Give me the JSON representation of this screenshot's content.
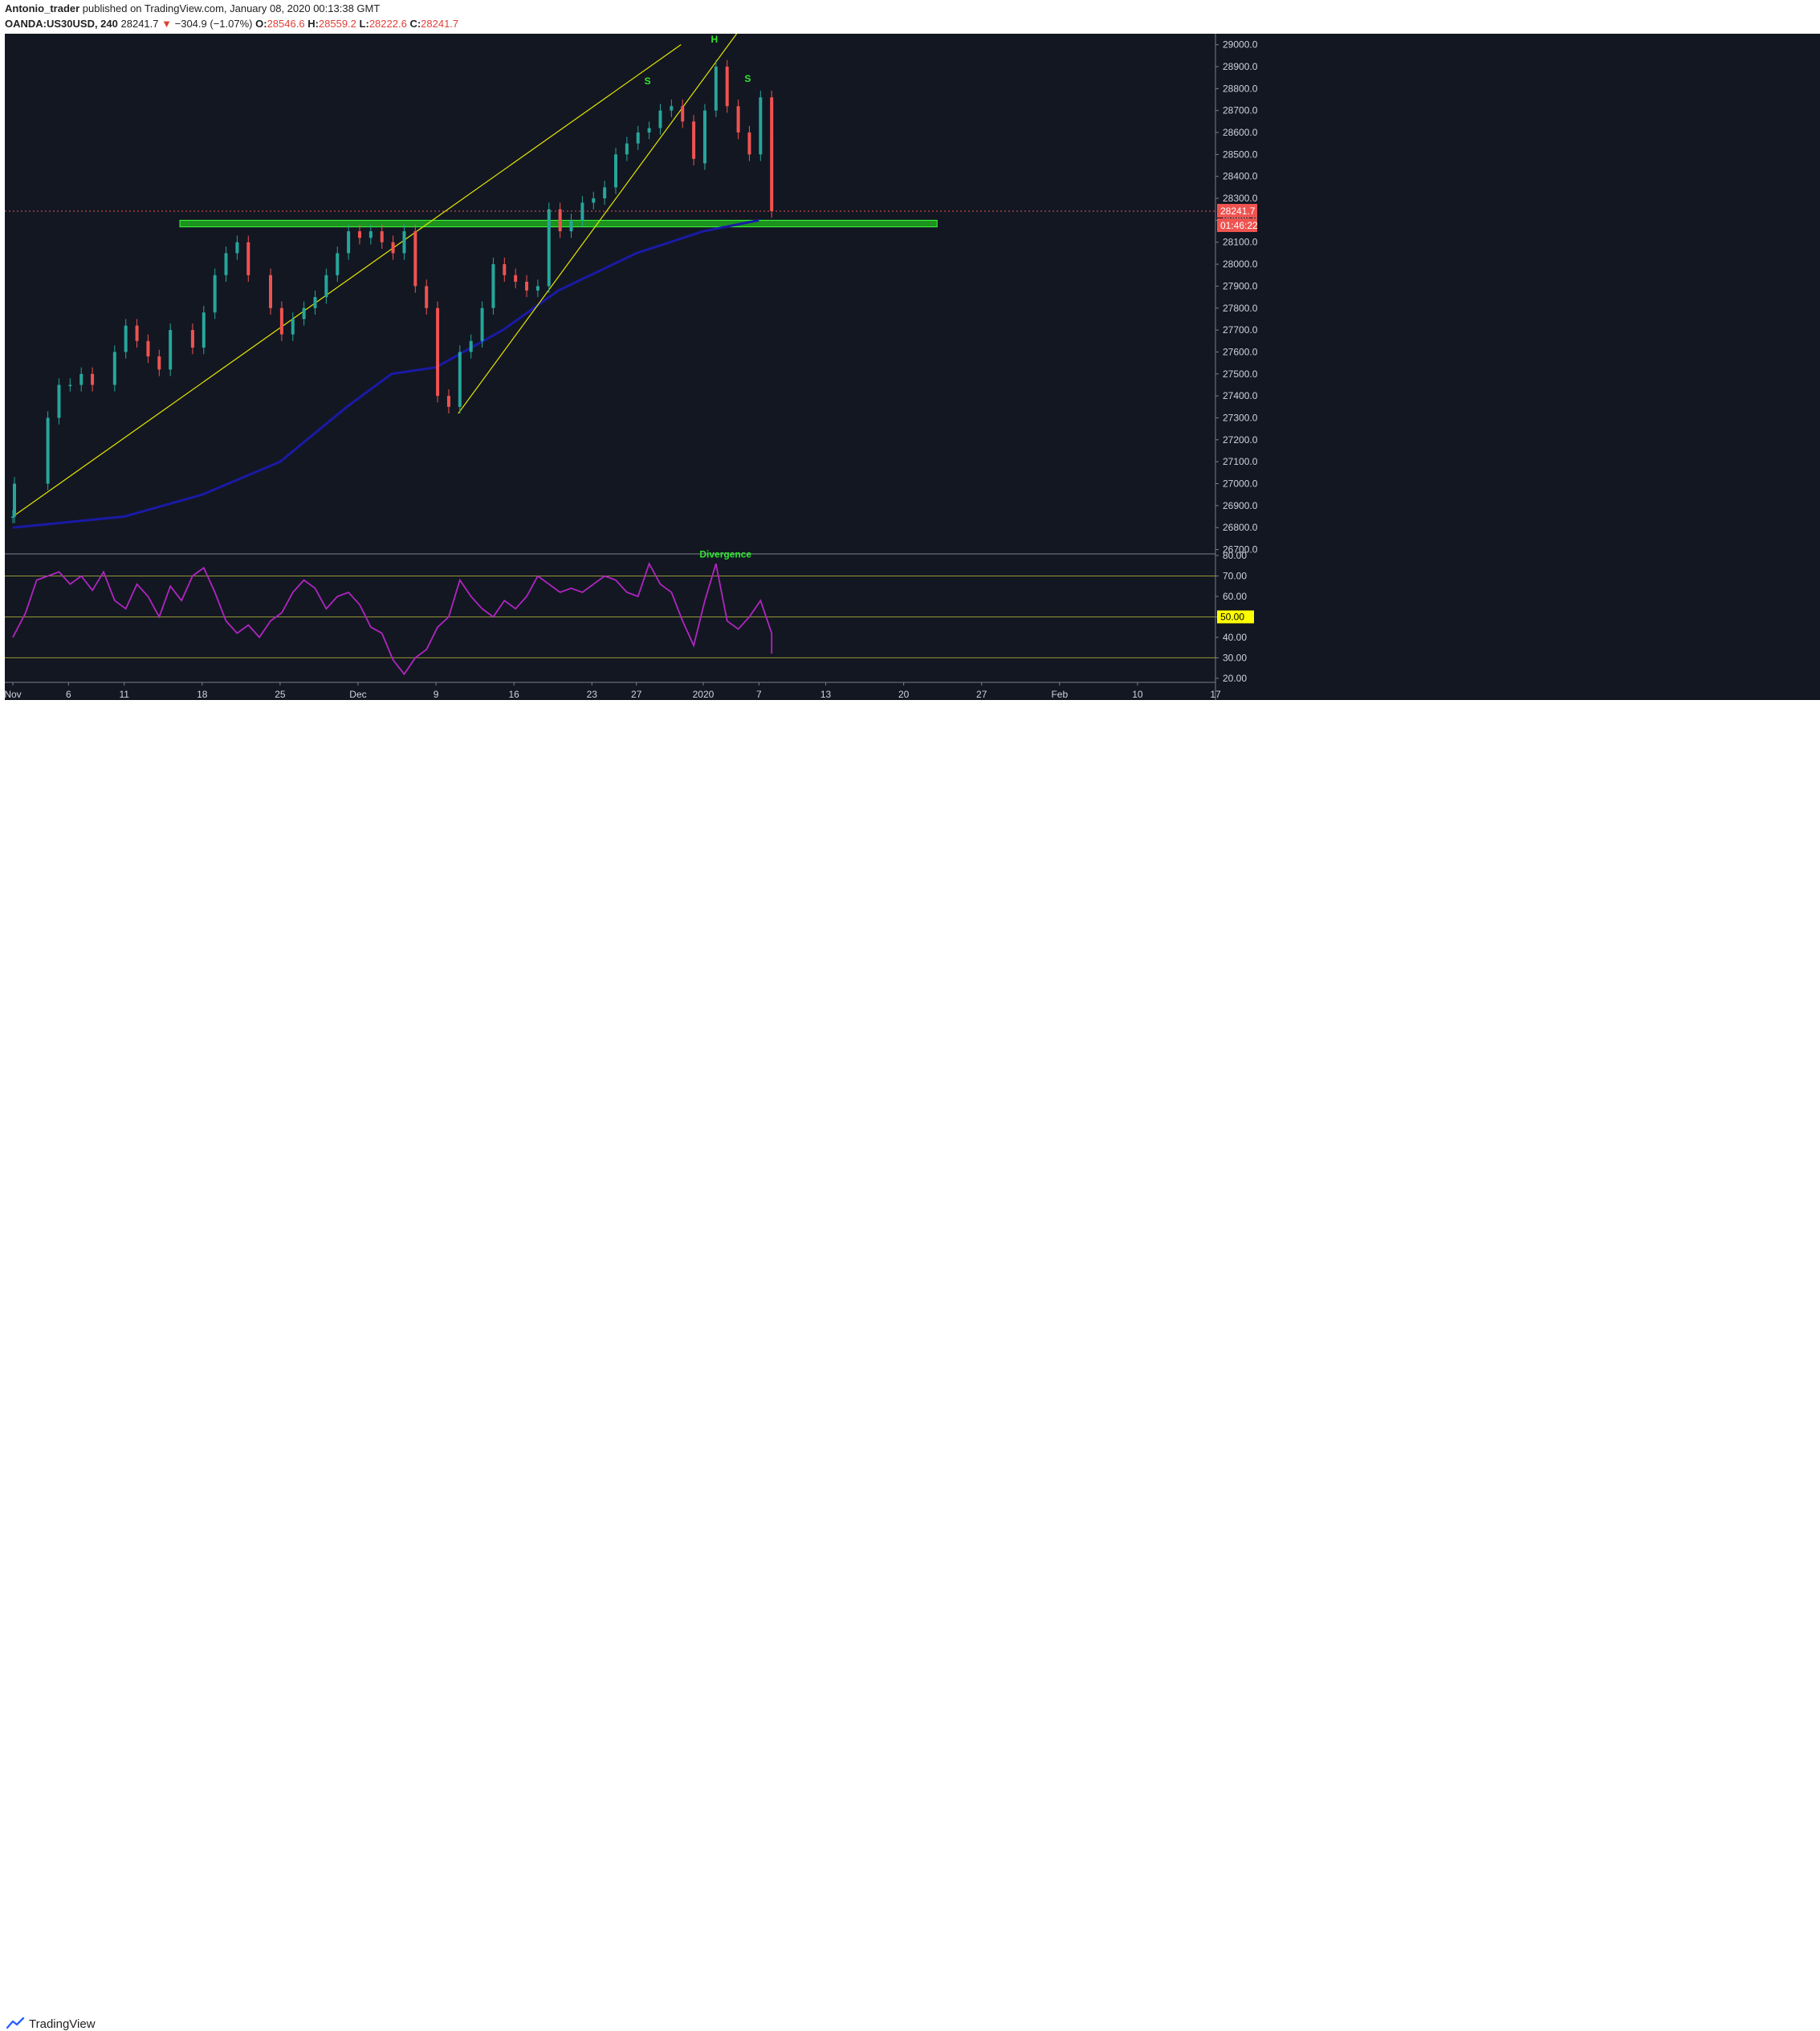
{
  "header": {
    "author": "Antonio_trader",
    "published_text": "published on TradingView.com, January 08, 2020 00:13:38 GMT",
    "symbol": "OANDA:US30USD, 240",
    "last": "28241.7",
    "change": "−304.9 (−1.07%)",
    "o_label": "O:",
    "o": "28546.6",
    "h_label": "H:",
    "h": "28559.2",
    "l_label": "L:",
    "l": "28222.6",
    "c_label": "C:",
    "c": "28241.7"
  },
  "footer": {
    "brand": "TradingView"
  },
  "colors": {
    "background": "#131722",
    "up": "#26a69a",
    "down": "#ef5350",
    "ma": "#1a1aa6",
    "trendline": "#e6e600",
    "zone": "#1fa81f",
    "rsi": "#b025c0",
    "annotation": "#2ee82e"
  },
  "chart_data": [
    {
      "type": "candlestick",
      "title": "",
      "y_ticks": [
        "29000.0",
        "28900.0",
        "28800.0",
        "28700.0",
        "28600.0",
        "28500.0",
        "28400.0",
        "28300.0",
        "28200.0",
        "28100.0",
        "28000.0",
        "27900.0",
        "27800.0",
        "27700.0",
        "27600.0",
        "27500.0",
        "27400.0",
        "27300.0",
        "27200.0",
        "27100.0",
        "27000.0",
        "26900.0",
        "26800.0",
        "26700.0"
      ],
      "ylim": [
        26680,
        29050
      ],
      "x_ticks": [
        "Nov",
        "6",
        "11",
        "18",
        "25",
        "Dec",
        "9",
        "16",
        "23",
        "27",
        "2020",
        "7",
        "13",
        "20",
        "27",
        "Feb",
        "10",
        "17"
      ],
      "x_tick_dates": [
        "2019-11-01",
        "2019-11-06",
        "2019-11-11",
        "2019-11-18",
        "2019-11-25",
        "2019-12-02",
        "2019-12-09",
        "2019-12-16",
        "2019-12-23",
        "2019-12-27",
        "2020-01-02",
        "2020-01-07",
        "2020-01-13",
        "2020-01-20",
        "2020-01-27",
        "2020-02-03",
        "2020-02-10",
        "2020-02-17"
      ],
      "close_path": [
        [
          "2019-11-01",
          26850
        ],
        [
          "2019-11-01",
          27000
        ],
        [
          "2019-11-04",
          27300
        ],
        [
          "2019-11-05",
          27450
        ],
        [
          "2019-11-06",
          27450
        ],
        [
          "2019-11-07",
          27500
        ],
        [
          "2019-11-08",
          27450
        ],
        [
          "2019-11-10",
          27600
        ],
        [
          "2019-11-11",
          27720
        ],
        [
          "2019-11-12",
          27650
        ],
        [
          "2019-11-13",
          27580
        ],
        [
          "2019-11-14",
          27520
        ],
        [
          "2019-11-15",
          27700
        ],
        [
          "2019-11-17",
          27620
        ],
        [
          "2019-11-18",
          27780
        ],
        [
          "2019-11-19",
          27950
        ],
        [
          "2019-11-20",
          28050
        ],
        [
          "2019-11-21",
          28100
        ],
        [
          "2019-11-22",
          27950
        ],
        [
          "2019-11-24",
          27800
        ],
        [
          "2019-11-25",
          27680
        ],
        [
          "2019-11-26",
          27750
        ],
        [
          "2019-11-27",
          27800
        ],
        [
          "2019-11-28",
          27850
        ],
        [
          "2019-11-29",
          27950
        ],
        [
          "2019-11-30",
          28050
        ],
        [
          "2019-12-01",
          28150
        ],
        [
          "2019-12-02",
          28120
        ],
        [
          "2019-12-03",
          28150
        ],
        [
          "2019-12-04",
          28100
        ],
        [
          "2019-12-05",
          28050
        ],
        [
          "2019-12-06",
          28150
        ],
        [
          "2019-12-07",
          27900
        ],
        [
          "2019-12-08",
          27800
        ],
        [
          "2019-12-09",
          27400
        ],
        [
          "2019-12-10",
          27350
        ],
        [
          "2019-12-11",
          27600
        ],
        [
          "2019-12-12",
          27650
        ],
        [
          "2019-12-13",
          27800
        ],
        [
          "2019-12-14",
          28000
        ],
        [
          "2019-12-15",
          27950
        ],
        [
          "2019-12-16",
          27920
        ],
        [
          "2019-12-17",
          27880
        ],
        [
          "2019-12-18",
          27900
        ],
        [
          "2019-12-19",
          28050
        ],
        [
          "2019-12-19",
          28250
        ],
        [
          "2019-12-20",
          28150
        ],
        [
          "2019-12-21",
          28200
        ],
        [
          "2019-12-22",
          28280
        ],
        [
          "2019-12-23",
          28300
        ],
        [
          "2019-12-24",
          28350
        ],
        [
          "2019-12-25",
          28500
        ],
        [
          "2019-12-26",
          28550
        ],
        [
          "2019-12-27",
          28600
        ],
        [
          "2019-12-28",
          28620
        ],
        [
          "2019-12-29",
          28700
        ],
        [
          "2019-12-30",
          28720
        ],
        [
          "2019-12-31",
          28650
        ],
        [
          "2020-01-01",
          28480
        ],
        [
          "2020-01-02",
          28460
        ],
        [
          "2020-01-02",
          28700
        ],
        [
          "2020-01-03",
          28900
        ],
        [
          "2020-01-04",
          28720
        ],
        [
          "2020-01-05",
          28600
        ],
        [
          "2020-01-06",
          28500
        ],
        [
          "2020-01-07",
          28760
        ],
        [
          "2020-01-08",
          28620
        ],
        [
          "2020-01-08",
          28241.7
        ]
      ],
      "last_price": 28241.7,
      "last_price_label": "28241.7",
      "countdown_label": "01:46:22",
      "moving_average": [
        [
          "2019-11-01",
          26800
        ],
        [
          "2019-11-11",
          26850
        ],
        [
          "2019-11-18",
          26950
        ],
        [
          "2019-11-25",
          27100
        ],
        [
          "2019-12-01",
          27350
        ],
        [
          "2019-12-05",
          27500
        ],
        [
          "2019-12-09",
          27530
        ],
        [
          "2019-12-15",
          27700
        ],
        [
          "2019-12-20",
          27880
        ],
        [
          "2019-12-27",
          28050
        ],
        [
          "2020-01-02",
          28150
        ],
        [
          "2020-01-07",
          28200
        ]
      ],
      "support_zone": {
        "from": 28170,
        "to": 28200,
        "x_start": "2019-11-16",
        "x_end": "2020-01-23"
      },
      "trendlines": [
        {
          "from": [
            "2019-11-01",
            26850
          ],
          "to": [
            "2019-12-31",
            29000
          ]
        },
        {
          "from": [
            "2019-12-11",
            27320
          ],
          "to": [
            "2020-01-05",
            29050
          ]
        }
      ],
      "annotations": [
        {
          "text": "S",
          "x": "2019-12-28",
          "y": 28820
        },
        {
          "text": "H",
          "x": "2020-01-03",
          "y": 29010
        },
        {
          "text": "S",
          "x": "2020-01-06",
          "y": 28830
        }
      ],
      "grid": false
    },
    {
      "type": "line",
      "title": "",
      "ylim": [
        18,
        80
      ],
      "y_ticks": [
        "80.00",
        "70.00",
        "60.00",
        "50.00",
        "40.00",
        "30.00",
        "20.00"
      ],
      "levels": [
        70,
        50,
        30
      ],
      "level_label": "50.00",
      "series": [
        {
          "values": [
            [
              "2019-11-01",
              40
            ],
            [
              "2019-11-02",
              52
            ],
            [
              "2019-11-03",
              68
            ],
            [
              "2019-11-05",
              72
            ],
            [
              "2019-11-06",
              66
            ],
            [
              "2019-11-07",
              70
            ],
            [
              "2019-11-08",
              63
            ],
            [
              "2019-11-09",
              72
            ],
            [
              "2019-11-10",
              58
            ],
            [
              "2019-11-11",
              54
            ],
            [
              "2019-11-12",
              66
            ],
            [
              "2019-11-13",
              60
            ],
            [
              "2019-11-14",
              50
            ],
            [
              "2019-11-15",
              65
            ],
            [
              "2019-11-16",
              58
            ],
            [
              "2019-11-17",
              70
            ],
            [
              "2019-11-18",
              74
            ],
            [
              "2019-11-19",
              62
            ],
            [
              "2019-11-20",
              48
            ],
            [
              "2019-11-21",
              42
            ],
            [
              "2019-11-22",
              46
            ],
            [
              "2019-11-23",
              40
            ],
            [
              "2019-11-24",
              48
            ],
            [
              "2019-11-25",
              52
            ],
            [
              "2019-11-26",
              62
            ],
            [
              "2019-11-27",
              68
            ],
            [
              "2019-11-28",
              64
            ],
            [
              "2019-11-29",
              54
            ],
            [
              "2019-11-30",
              60
            ],
            [
              "2019-12-01",
              62
            ],
            [
              "2019-12-02",
              56
            ],
            [
              "2019-12-03",
              45
            ],
            [
              "2019-12-04",
              42
            ],
            [
              "2019-12-05",
              29
            ],
            [
              "2019-12-06",
              22
            ],
            [
              "2019-12-07",
              30
            ],
            [
              "2019-12-08",
              34
            ],
            [
              "2019-12-09",
              45
            ],
            [
              "2019-12-10",
              50
            ],
            [
              "2019-12-11",
              68
            ],
            [
              "2019-12-12",
              60
            ],
            [
              "2019-12-13",
              54
            ],
            [
              "2019-12-14",
              50
            ],
            [
              "2019-12-15",
              58
            ],
            [
              "2019-12-16",
              54
            ],
            [
              "2019-12-17",
              60
            ],
            [
              "2019-12-18",
              70
            ],
            [
              "2019-12-19",
              66
            ],
            [
              "2019-12-20",
              62
            ],
            [
              "2019-12-21",
              64
            ],
            [
              "2019-12-22",
              62
            ],
            [
              "2019-12-23",
              66
            ],
            [
              "2019-12-24",
              70
            ],
            [
              "2019-12-25",
              68
            ],
            [
              "2019-12-26",
              62
            ],
            [
              "2019-12-27",
              60
            ],
            [
              "2019-12-28",
              76
            ],
            [
              "2019-12-29",
              66
            ],
            [
              "2019-12-30",
              62
            ],
            [
              "2019-12-31",
              48
            ],
            [
              "2020-01-01",
              36
            ],
            [
              "2020-01-02",
              58
            ],
            [
              "2020-01-03",
              76
            ],
            [
              "2020-01-04",
              48
            ],
            [
              "2020-01-05",
              44
            ],
            [
              "2020-01-06",
              50
            ],
            [
              "2020-01-07",
              58
            ],
            [
              "2020-01-08",
              42
            ],
            [
              "2020-01-08",
              32
            ]
          ]
        }
      ],
      "annotations": [
        {
          "text": "Divergence",
          "x": "2020-01-04",
          "y": 79
        }
      ]
    }
  ]
}
